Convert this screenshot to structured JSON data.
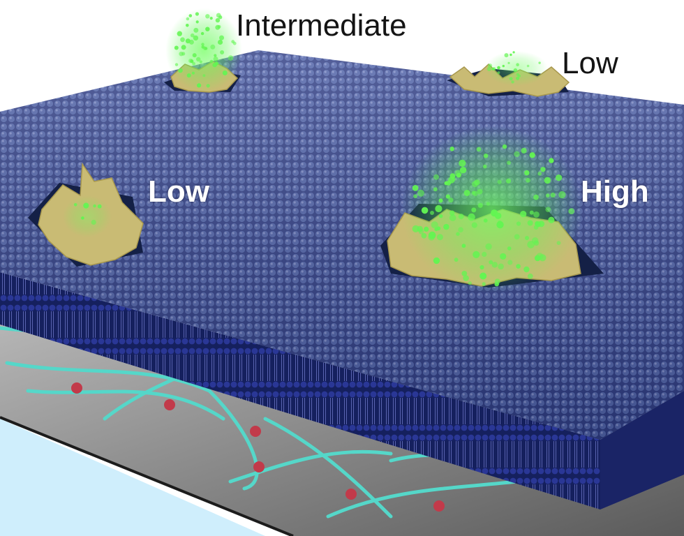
{
  "labels": {
    "intermediate": "Intermediate",
    "low_top": "Low",
    "low_left": "Low",
    "high": "High"
  },
  "colors": {
    "membrane_top": "#3a4a8c",
    "membrane_edge": "#1f2775",
    "substrate": "#8a8a8a",
    "water": "#cfeefc",
    "filament": "#55d7c9",
    "bead": "#c23a4a",
    "cluster": "#c9bb74",
    "glow": "#6bff5a"
  },
  "icons": {
    "filament": "cytoskeleton-filament-icon",
    "bead": "particle-bead-icon",
    "cluster": "protein-cluster-icon",
    "glow": "fluorescence-glow-icon"
  }
}
